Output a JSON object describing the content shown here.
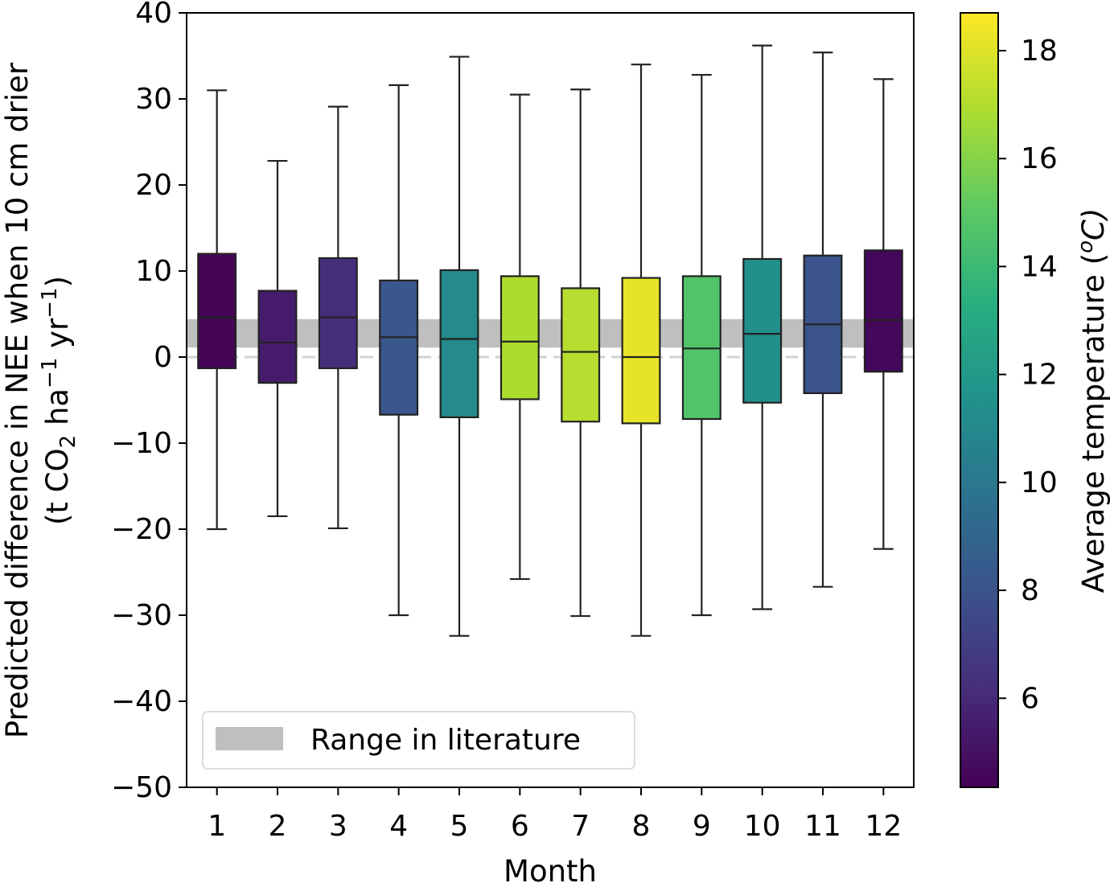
{
  "chart_data": {
    "type": "box",
    "xlabel": "Month",
    "ylabel_line1": "Predicted difference in NEE when 10 cm drier",
    "ylabel_line2_parts": [
      "(t CO",
      "2",
      " ha",
      "−1",
      " yr",
      "−1",
      ")"
    ],
    "ylim": [
      -50,
      40
    ],
    "yticks": [
      40,
      30,
      20,
      10,
      0,
      -10,
      -20,
      -30,
      -40,
      -50
    ],
    "ytick_labels": [
      "40",
      "30",
      "20",
      "10",
      "0",
      "−10",
      "−20",
      "−30",
      "−40",
      "−50"
    ],
    "categories": [
      "1",
      "2",
      "3",
      "4",
      "5",
      "6",
      "7",
      "8",
      "9",
      "10",
      "11",
      "12"
    ],
    "boxes": [
      {
        "month": "1",
        "whisker_low": -20.0,
        "q1": -1.3,
        "median": 4.6,
        "q3": 12.0,
        "whisker_high": 31.0,
        "temperature": 4.5
      },
      {
        "month": "2",
        "whisker_low": -18.5,
        "q1": -3.0,
        "median": 1.7,
        "q3": 7.7,
        "whisker_high": 22.8,
        "temperature": 5.4
      },
      {
        "month": "3",
        "whisker_low": -19.9,
        "q1": -1.3,
        "median": 4.6,
        "q3": 11.5,
        "whisker_high": 29.1,
        "temperature": 6.2
      },
      {
        "month": "4",
        "whisker_low": -30.0,
        "q1": -6.7,
        "median": 2.3,
        "q3": 8.9,
        "whisker_high": 31.6,
        "temperature": 8.2
      },
      {
        "month": "5",
        "whisker_low": -32.4,
        "q1": -7.0,
        "median": 2.1,
        "q3": 10.1,
        "whisker_high": 34.9,
        "temperature": 11.1
      },
      {
        "month": "6",
        "whisker_low": -25.8,
        "q1": -4.9,
        "median": 1.8,
        "q3": 9.4,
        "whisker_high": 30.5,
        "temperature": 16.9
      },
      {
        "month": "7",
        "whisker_low": -30.1,
        "q1": -7.5,
        "median": 0.6,
        "q3": 8.0,
        "whisker_high": 31.1,
        "temperature": 17.1
      },
      {
        "month": "8",
        "whisker_low": -32.4,
        "q1": -7.7,
        "median": 0.0,
        "q3": 9.2,
        "whisker_high": 34.0,
        "temperature": 18.2
      },
      {
        "month": "9",
        "whisker_low": -30.0,
        "q1": -7.2,
        "median": 1.0,
        "q3": 9.4,
        "whisker_high": 32.8,
        "temperature": 14.7
      },
      {
        "month": "10",
        "whisker_low": -29.3,
        "q1": -5.3,
        "median": 2.7,
        "q3": 11.4,
        "whisker_high": 36.2,
        "temperature": 11.4
      },
      {
        "month": "11",
        "whisker_low": -26.7,
        "q1": -4.2,
        "median": 3.8,
        "q3": 11.8,
        "whisker_high": 35.4,
        "temperature": 8.0
      },
      {
        "month": "12",
        "whisker_low": -22.3,
        "q1": -1.7,
        "median": 4.3,
        "q3": 12.4,
        "whisker_high": 32.3,
        "temperature": 4.6
      }
    ],
    "literature_range": {
      "low": 1.1,
      "high": 4.4,
      "color": "#bfbfbf"
    },
    "reference_line": {
      "value": 0,
      "style": "dashed",
      "color": "#d3d3d3"
    },
    "legend": {
      "label": "Range in literature",
      "placement": "lower-left"
    },
    "colorbar": {
      "label_prefix": "Average temperature (",
      "label_super": "o",
      "label_suffix": "C)",
      "range": [
        4.35,
        18.7
      ],
      "ticks": [
        6,
        8,
        10,
        12,
        14,
        16,
        18
      ],
      "colormap": "viridis"
    },
    "grid": false
  }
}
